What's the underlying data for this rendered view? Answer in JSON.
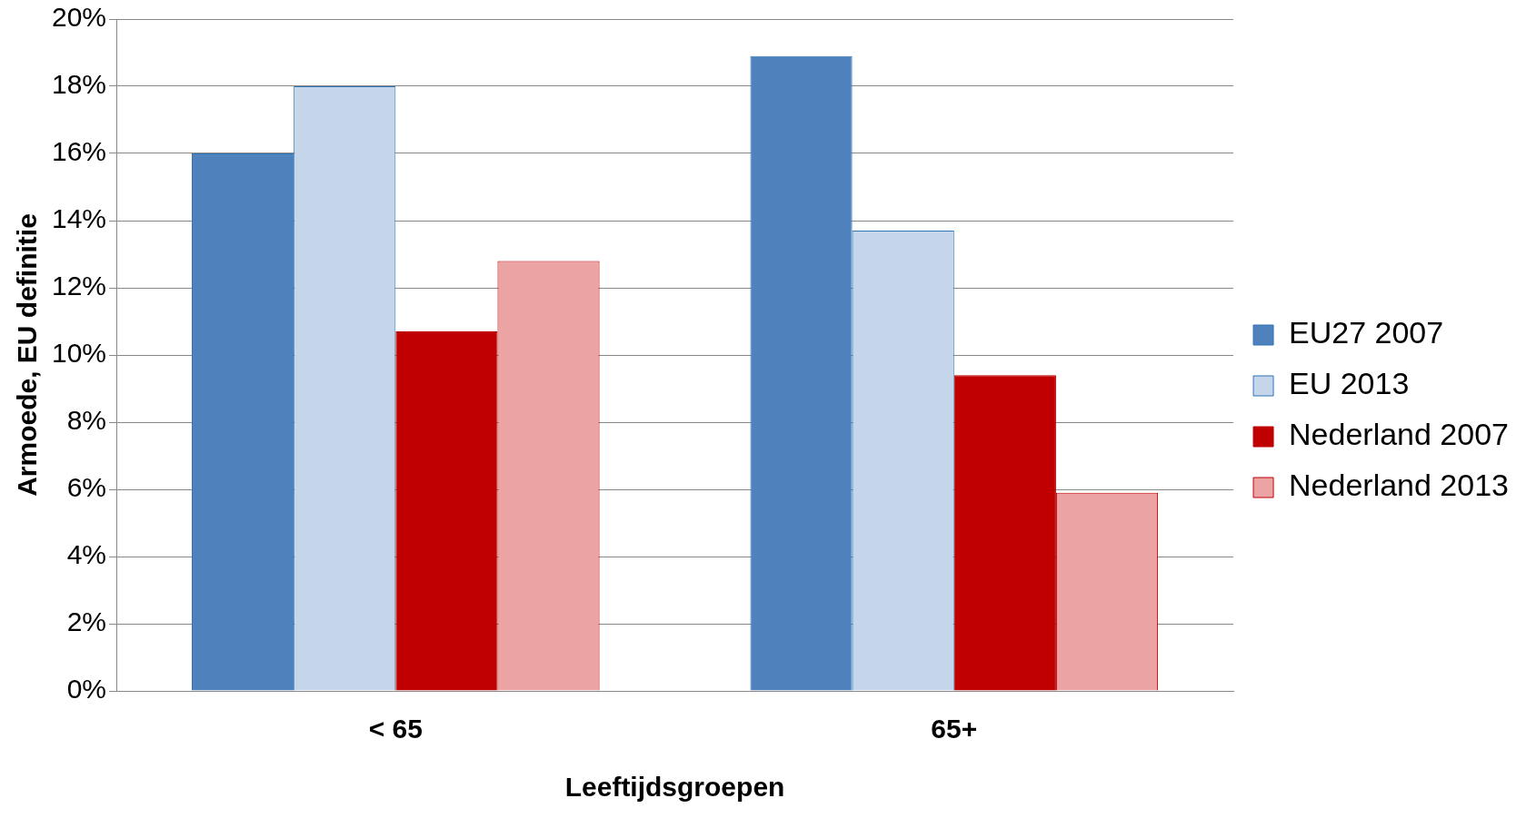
{
  "chart_data": {
    "type": "bar",
    "xlabel": "Leeftijdsgroepen",
    "ylabel": "Armoede, EU definitie",
    "categories": [
      "< 65",
      "65+"
    ],
    "series": [
      {
        "name": "EU27 2007",
        "color": "#4f81bd",
        "values": [
          16,
          18.9
        ]
      },
      {
        "name": "EU 2013",
        "color": "#c5d5ea",
        "values": [
          18,
          13.7
        ]
      },
      {
        "name": "Nederland 2007",
        "color": "#c00000",
        "values": [
          10.7,
          9.4
        ]
      },
      {
        "name": "Nederland 2013",
        "color": "#eba3a3",
        "values": [
          12.8,
          5.9
        ]
      }
    ],
    "ylim": [
      0,
      20
    ],
    "yticks": [
      {
        "value": 0,
        "label": "0%"
      },
      {
        "value": 2,
        "label": "2%"
      },
      {
        "value": 4,
        "label": "4%"
      },
      {
        "value": 6,
        "label": "6%"
      },
      {
        "value": 8,
        "label": "8%"
      },
      {
        "value": 10,
        "label": "10%"
      },
      {
        "value": 12,
        "label": "12%"
      },
      {
        "value": 14,
        "label": "14%"
      },
      {
        "value": 16,
        "label": "16%"
      },
      {
        "value": 18,
        "label": "18%"
      },
      {
        "value": 20,
        "label": "20%"
      }
    ],
    "grid": "y",
    "legend": "right"
  }
}
